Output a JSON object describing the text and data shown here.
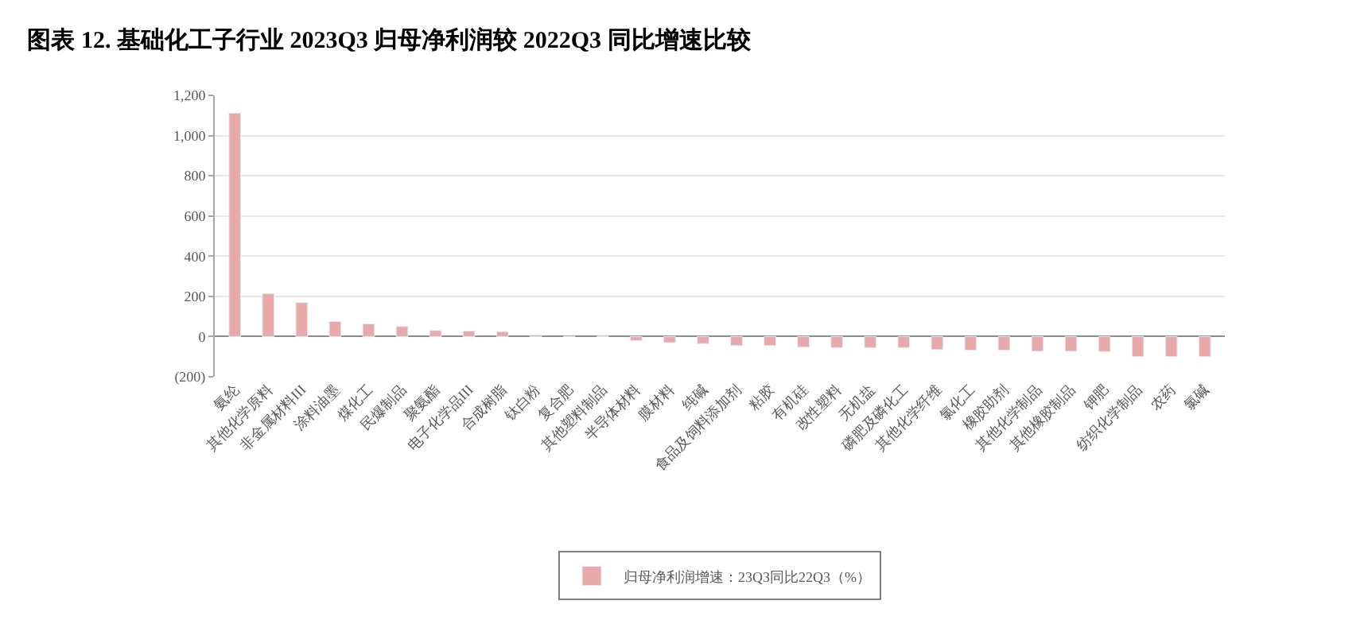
{
  "chart_data": {
    "type": "bar",
    "title": "图表 12. 基础化工子行业 2023Q3 归母净利润较 2022Q3 同比增速比较",
    "categories": [
      "氨纶",
      "其他化学原料",
      "非金属材料III",
      "涂料油墨",
      "煤化工",
      "民爆制品",
      "聚氨酯",
      "电子化学品III",
      "合成树脂",
      "钛白粉",
      "复合肥",
      "其他塑料制品",
      "半导体材料",
      "膜材料",
      "纯碱",
      "食品及饲料添加剂",
      "粘胶",
      "有机硅",
      "改性塑料",
      "无机盐",
      "磷肥及磷化工",
      "其他化学纤维",
      "氯化工",
      "橡胶助剂",
      "其他化学制品",
      "其他橡胶制品",
      "钾肥",
      "纺织化学制品",
      "农药",
      "氯碱"
    ],
    "series": [
      {
        "name": "归母净利润增速：23Q3同比22Q3（%）",
        "color": "#e8a9a9",
        "values": [
          1112,
          214,
          169,
          75,
          63,
          50,
          30,
          28,
          25,
          8,
          1,
          2,
          -20,
          -30,
          -35,
          -45,
          -45,
          -53,
          -55,
          -55,
          -55,
          -65,
          -68,
          -68,
          -73,
          -73,
          -75,
          -100,
          -100,
          -100
        ]
      }
    ],
    "ylim": [
      -200,
      1200
    ],
    "yticks": [
      {
        "value": -200,
        "label": "(200)"
      },
      0,
      200,
      400,
      600,
      800,
      {
        "value": 1000,
        "label": "1,000"
      },
      {
        "value": 1200,
        "label": "1,200"
      }
    ],
    "grid": "y",
    "legend": "bottom"
  }
}
